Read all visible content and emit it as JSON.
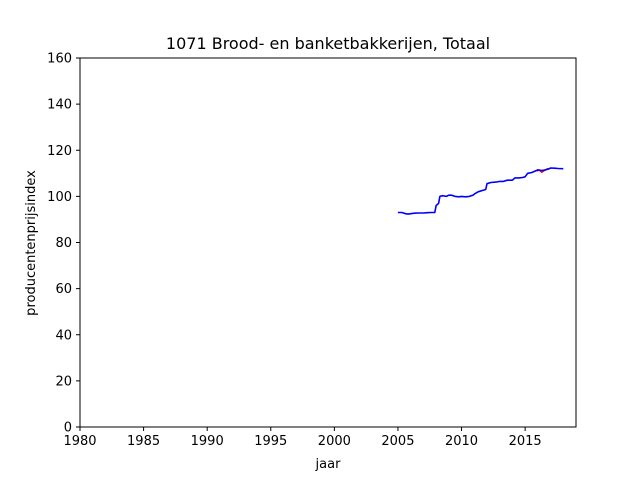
{
  "chart_data": {
    "type": "line",
    "title": "1071 Brood- en banketbakkerijen, Totaal",
    "xlabel": "jaar",
    "ylabel": "producentenprijsindex",
    "xlim": [
      1980,
      2019
    ],
    "ylim": [
      0,
      160
    ],
    "xticks": [
      1980,
      1985,
      1990,
      1995,
      2000,
      2005,
      2010,
      2015
    ],
    "yticks": [
      0,
      20,
      40,
      60,
      80,
      100,
      120,
      140,
      160
    ],
    "grid": false,
    "series": [
      {
        "color": "#ff0000",
        "x": [
          2015.9,
          2016.1,
          2016.3,
          2016.5,
          2016.7,
          2016.9
        ],
        "y": [
          111.0,
          111.5,
          110.5,
          111.2,
          111.8,
          112.0
        ]
      },
      {
        "color": "#0000ff",
        "x": [
          2005.0,
          2005.3,
          2005.6,
          2005.8,
          2006.0,
          2006.3,
          2006.6,
          2007.0,
          2007.3,
          2007.6,
          2007.9,
          2008.0,
          2008.2,
          2008.3,
          2008.5,
          2008.8,
          2009.0,
          2009.2,
          2009.5,
          2009.8,
          2010.0,
          2010.3,
          2010.6,
          2010.9,
          2011.0,
          2011.3,
          2011.6,
          2011.9,
          2012.0,
          2012.3,
          2012.7,
          2013.0,
          2013.3,
          2013.6,
          2014.0,
          2014.2,
          2014.5,
          2014.8,
          2015.0,
          2015.2,
          2015.5,
          2015.8,
          2016.0,
          2016.3,
          2016.6,
          2016.9,
          2017.0,
          2017.3,
          2017.6,
          2018.0
        ],
        "y": [
          93.0,
          93.0,
          92.5,
          92.3,
          92.5,
          92.7,
          92.8,
          92.8,
          92.9,
          93.0,
          93.0,
          96.0,
          97.0,
          100.0,
          100.3,
          100.0,
          100.5,
          100.5,
          100.0,
          99.8,
          100.0,
          99.8,
          100.0,
          100.5,
          101.0,
          102.0,
          102.5,
          103.0,
          105.5,
          106.0,
          106.2,
          106.5,
          106.5,
          107.0,
          107.0,
          108.0,
          108.0,
          108.2,
          108.5,
          110.0,
          110.3,
          111.0,
          111.5,
          111.2,
          111.5,
          112.0,
          112.3,
          112.2,
          112.1,
          112.0
        ]
      }
    ]
  }
}
